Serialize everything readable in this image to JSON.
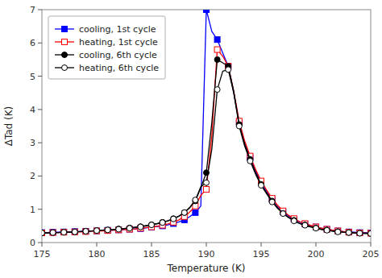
{
  "chart_data": {
    "type": "line",
    "title": "",
    "xlabel": "Temperature (K)",
    "ylabel": "ΔTad (K)",
    "xlim": [
      175,
      205
    ],
    "ylim": [
      0,
      7
    ],
    "xticks": [
      175,
      180,
      185,
      190,
      195,
      200,
      205
    ],
    "yticks": [
      0,
      1,
      2,
      3,
      4,
      5,
      6,
      7
    ],
    "grid": false,
    "legend": "upper left",
    "x": [
      175.0,
      175.5,
      176.0,
      176.5,
      177.0,
      177.5,
      178.0,
      178.5,
      179.0,
      179.5,
      180.0,
      180.5,
      181.0,
      181.5,
      182.0,
      182.5,
      183.0,
      183.5,
      184.0,
      184.5,
      185.0,
      185.5,
      186.0,
      186.5,
      187.0,
      187.5,
      188.0,
      188.5,
      189.0,
      189.5,
      190.0,
      190.5,
      191.0,
      191.5,
      192.0,
      192.5,
      193.0,
      193.5,
      194.0,
      194.5,
      195.0,
      195.5,
      196.0,
      196.5,
      197.0,
      197.5,
      198.0,
      198.5,
      199.0,
      199.5,
      200.0,
      200.5,
      201.0,
      201.5,
      202.0,
      202.5,
      203.0,
      203.5,
      204.0,
      204.5,
      205.0
    ],
    "series": [
      {
        "name": "cooling, 1st cycle",
        "color": "blue",
        "marker": "square",
        "values": [
          0.3,
          0.3,
          0.31,
          0.31,
          0.32,
          0.32,
          0.33,
          0.33,
          0.34,
          0.35,
          0.35,
          0.36,
          0.37,
          0.37,
          0.38,
          0.39,
          0.4,
          0.41,
          0.42,
          0.44,
          0.46,
          0.48,
          0.5,
          0.53,
          0.57,
          0.62,
          0.68,
          0.78,
          0.9,
          1.1,
          7.0,
          6.35,
          6.1,
          5.7,
          5.3,
          4.5,
          3.6,
          3.0,
          2.55,
          2.15,
          1.8,
          1.55,
          1.3,
          1.1,
          0.92,
          0.8,
          0.7,
          0.62,
          0.56,
          0.51,
          0.47,
          0.43,
          0.4,
          0.37,
          0.35,
          0.33,
          0.32,
          0.31,
          0.3,
          0.3,
          0.29
        ]
      },
      {
        "name": "heating, 1st cycle",
        "color": "red",
        "marker": "square-open",
        "values": [
          0.29,
          0.29,
          0.3,
          0.3,
          0.31,
          0.31,
          0.32,
          0.32,
          0.33,
          0.34,
          0.35,
          0.35,
          0.36,
          0.37,
          0.38,
          0.39,
          0.4,
          0.41,
          0.43,
          0.45,
          0.47,
          0.49,
          0.52,
          0.56,
          0.61,
          0.68,
          0.78,
          0.92,
          1.1,
          1.42,
          1.6,
          3.2,
          5.8,
          5.6,
          5.3,
          4.55,
          3.65,
          3.05,
          2.6,
          2.2,
          1.85,
          1.58,
          1.33,
          1.12,
          0.95,
          0.82,
          0.72,
          0.63,
          0.57,
          0.52,
          0.47,
          0.43,
          0.4,
          0.37,
          0.35,
          0.33,
          0.31,
          0.3,
          0.29,
          0.29,
          0.28
        ]
      },
      {
        "name": "cooling, 6th cycle",
        "color": "black",
        "marker": "circle",
        "values": [
          0.29,
          0.29,
          0.3,
          0.3,
          0.31,
          0.31,
          0.32,
          0.33,
          0.34,
          0.35,
          0.36,
          0.37,
          0.38,
          0.39,
          0.41,
          0.42,
          0.44,
          0.46,
          0.48,
          0.51,
          0.54,
          0.57,
          0.61,
          0.66,
          0.72,
          0.8,
          0.9,
          1.05,
          1.25,
          1.65,
          2.1,
          3.6,
          5.5,
          5.4,
          5.3,
          4.55,
          3.55,
          2.95,
          2.5,
          2.1,
          1.75,
          1.5,
          1.25,
          1.05,
          0.88,
          0.76,
          0.67,
          0.58,
          0.53,
          0.48,
          0.44,
          0.4,
          0.38,
          0.35,
          0.33,
          0.31,
          0.3,
          0.29,
          0.28,
          0.28,
          0.27
        ]
      },
      {
        "name": "heating, 6th cycle",
        "color": "black",
        "marker": "circle-open",
        "values": [
          0.29,
          0.29,
          0.3,
          0.3,
          0.31,
          0.31,
          0.32,
          0.33,
          0.34,
          0.35,
          0.36,
          0.37,
          0.38,
          0.39,
          0.4,
          0.42,
          0.43,
          0.45,
          0.47,
          0.5,
          0.53,
          0.56,
          0.6,
          0.65,
          0.71,
          0.79,
          0.9,
          1.06,
          1.28,
          1.68,
          1.8,
          2.8,
          4.6,
          5.15,
          5.2,
          4.5,
          3.5,
          2.9,
          2.45,
          2.05,
          1.72,
          1.47,
          1.22,
          1.03,
          0.87,
          0.75,
          0.65,
          0.57,
          0.52,
          0.47,
          0.43,
          0.39,
          0.37,
          0.34,
          0.32,
          0.31,
          0.3,
          0.29,
          0.28,
          0.27,
          0.27
        ]
      }
    ]
  }
}
